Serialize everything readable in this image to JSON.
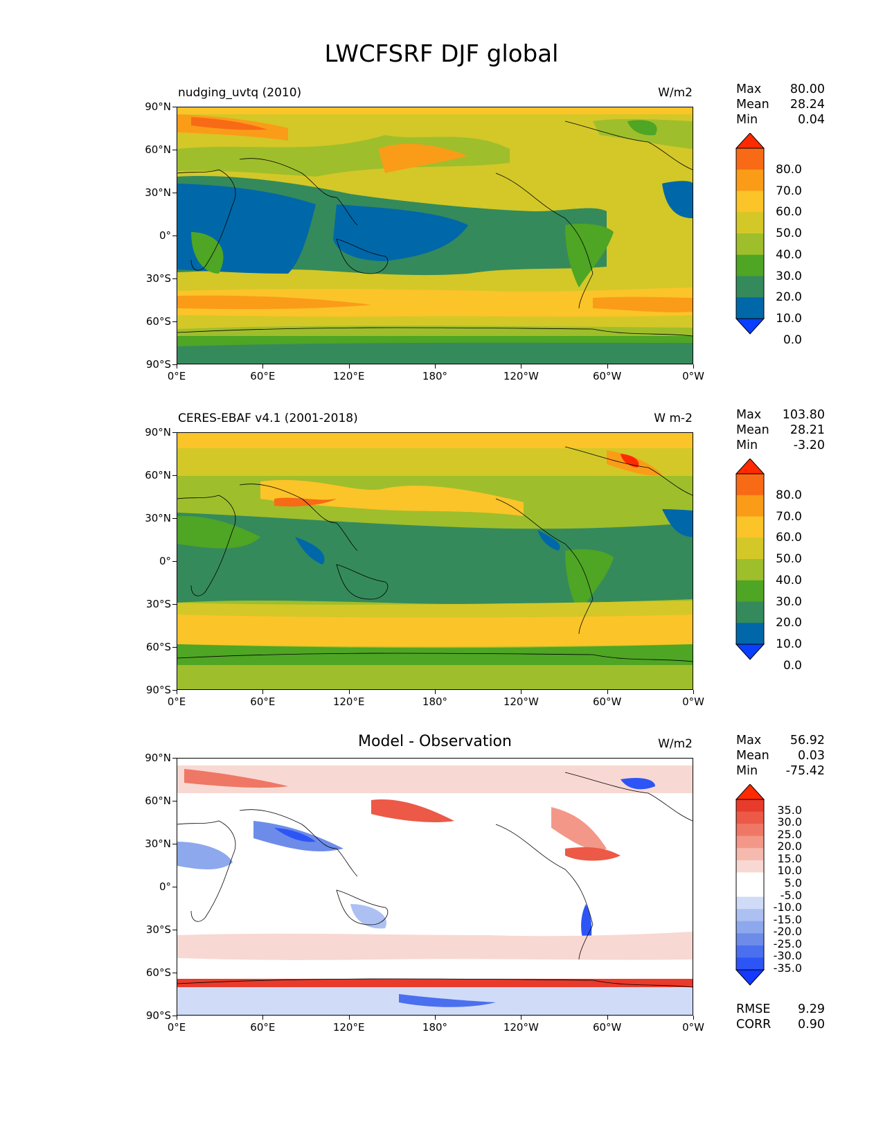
{
  "figure": {
    "title": "LWCFSRF DJF global"
  },
  "axes": {
    "lat_ticks": [
      "90°N",
      "60°N",
      "30°N",
      "0°",
      "30°S",
      "60°S",
      "90°S"
    ],
    "lon_ticks": [
      "0°E",
      "60°E",
      "120°E",
      "180°",
      "120°W",
      "60°W",
      "0°W"
    ]
  },
  "colors": {
    "abs_scale": [
      "#0a3fff",
      "#0068a8",
      "#358a5b",
      "#4fa524",
      "#9fbe2c",
      "#d3c828",
      "#fbc428",
      "#fa9c18",
      "#f86a16",
      "#ff2a00"
    ],
    "diff_scale": [
      "#1439ff",
      "#2d55f5",
      "#4a6fef",
      "#6d8ce9",
      "#8da8ec",
      "#adc0f2",
      "#d0dbf8",
      "#ffffff",
      "#ffffff",
      "#f8d8d2",
      "#f5b9ae",
      "#f39888",
      "#ef7765",
      "#ec5947",
      "#e83b2b",
      "#ff2a00"
    ],
    "coastline": "#000000"
  },
  "panels": [
    {
      "id": "model",
      "left_title": "nudging_uvtq (2010)",
      "center_title": "",
      "units": "W/m2",
      "stats": [
        {
          "label": "Max",
          "value": "80.00"
        },
        {
          "label": "Mean",
          "value": "28.24"
        },
        {
          "label": "Min",
          "value": "0.04"
        }
      ],
      "colorbar_labels": [
        "80.0",
        "70.0",
        "60.0",
        "50.0",
        "40.0",
        "30.0",
        "20.0",
        "10.0",
        "0.0"
      ]
    },
    {
      "id": "obs",
      "left_title": "CERES-EBAF v4.1 (2001-2018)",
      "center_title": "",
      "units": "W m-2",
      "stats": [
        {
          "label": "Max",
          "value": "103.80"
        },
        {
          "label": "Mean",
          "value": "28.21"
        },
        {
          "label": "Min",
          "value": "-3.20"
        }
      ],
      "colorbar_labels": [
        "80.0",
        "70.0",
        "60.0",
        "50.0",
        "40.0",
        "30.0",
        "20.0",
        "10.0",
        "0.0"
      ]
    },
    {
      "id": "diff",
      "left_title": "",
      "center_title": "Model - Observation",
      "units": "W/m2",
      "stats": [
        {
          "label": "Max",
          "value": "56.92"
        },
        {
          "label": "Mean",
          "value": "0.03"
        },
        {
          "label": "Min",
          "value": "-75.42"
        }
      ],
      "colorbar_labels": [
        "35.0",
        "30.0",
        "25.0",
        "20.0",
        "15.0",
        "10.0",
        "5.0",
        "-5.0",
        "-10.0",
        "-15.0",
        "-20.0",
        "-25.0",
        "-30.0",
        "-35.0"
      ],
      "bottom_stats": [
        {
          "label": "RMSE",
          "value": "9.29"
        },
        {
          "label": "CORR",
          "value": "0.90"
        }
      ]
    }
  ]
}
